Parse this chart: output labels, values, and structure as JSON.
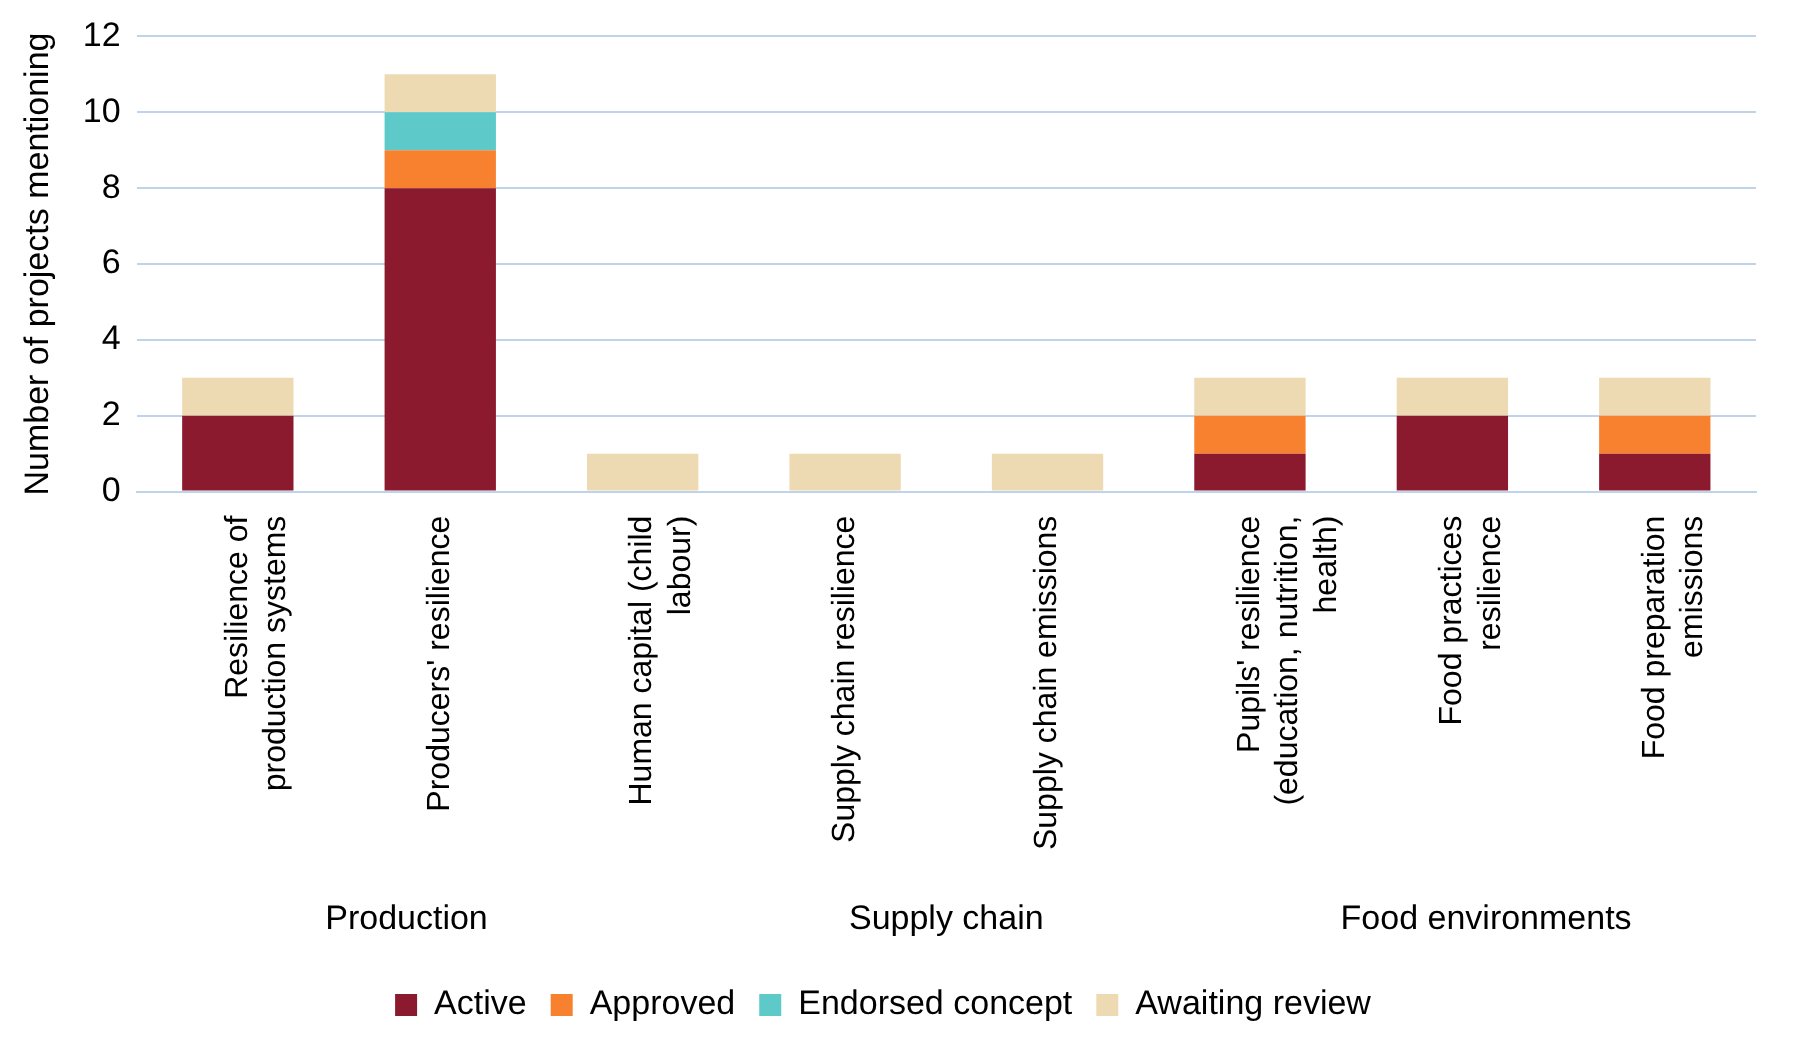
{
  "chart_data": {
    "type": "bar",
    "stacked": true,
    "ylabel": "Number of projects mentioning",
    "categories": [
      "Resilience of production systems",
      "Producers' resilience",
      "Human capital (child labour)",
      "Supply chain resilience",
      "Supply chain emissions",
      "Pupils' resilience (education, nutrition, health)",
      "Food practices resilience",
      "Food preparation emissions"
    ],
    "series": [
      {
        "name": "Active",
        "color": "#8b1a2e",
        "values": [
          2,
          8,
          0,
          0,
          0,
          1,
          2,
          1
        ]
      },
      {
        "name": "Approved",
        "color": "#f7812f",
        "values": [
          0,
          1,
          0,
          0,
          0,
          1,
          0,
          1
        ]
      },
      {
        "name": "Endorsed concept",
        "color": "#5dc9c9",
        "values": [
          0,
          1,
          0,
          0,
          0,
          0,
          0,
          0
        ]
      },
      {
        "name": "Awaiting review",
        "color": "#edd9b2",
        "values": [
          1,
          1,
          1,
          1,
          1,
          1,
          1,
          1
        ]
      }
    ],
    "ylim": [
      0,
      12
    ],
    "yticks": [
      0,
      2,
      4,
      6,
      8,
      10,
      12
    ],
    "grid": "y",
    "legend": "bottom",
    "annotations": [
      "Production",
      "Supply chain",
      "Food environments"
    ]
  }
}
